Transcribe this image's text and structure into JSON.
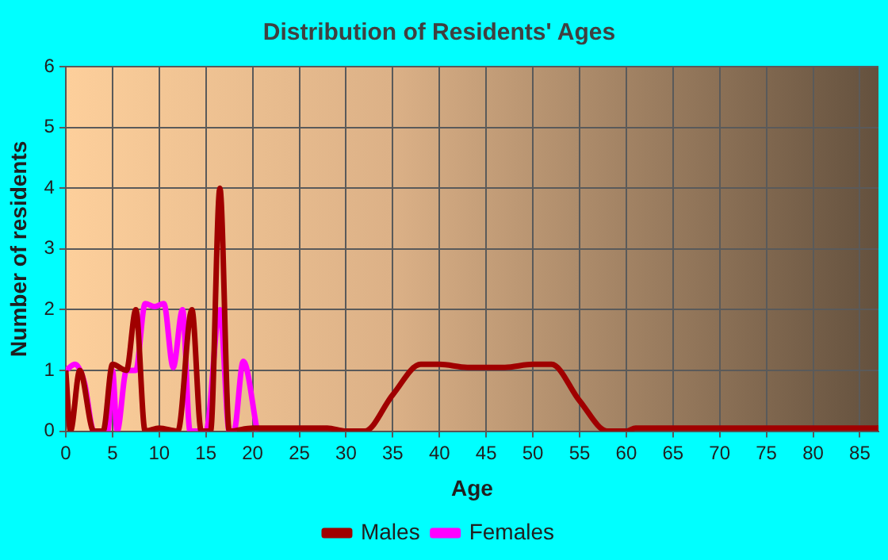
{
  "chart_data": {
    "type": "line",
    "title": "Distribution of Residents' Ages",
    "xlabel": "Age",
    "ylabel": "Number of residents",
    "xlim": [
      0,
      87
    ],
    "xticks": [
      0,
      5,
      10,
      15,
      20,
      25,
      30,
      35,
      40,
      45,
      50,
      55,
      60,
      65,
      70,
      75,
      80,
      85
    ],
    "ylim": [
      0,
      6
    ],
    "yticks": [
      0,
      1,
      2,
      3,
      4,
      5,
      6
    ],
    "grid": true,
    "legend": "bottom",
    "marker": "none",
    "line_style": "solid",
    "series": [
      {
        "name": "Males",
        "color": "#a00000",
        "x": [
          0,
          0.5,
          1.5,
          3,
          4,
          5,
          6.5,
          7.5,
          8.5,
          10,
          12,
          13.5,
          14.5,
          15.5,
          16.5,
          17.5,
          20,
          28,
          30,
          32,
          35,
          38,
          40,
          43,
          47,
          50,
          52,
          55,
          58,
          60,
          61,
          87
        ],
        "values": [
          1,
          0,
          1,
          0,
          0,
          1.1,
          1,
          2,
          0,
          0.05,
          0,
          2,
          0,
          0,
          4,
          0,
          0.05,
          0.05,
          0,
          0,
          0.6,
          1.1,
          1.1,
          1.05,
          1.05,
          1.1,
          1.1,
          0.5,
          0,
          0,
          0.05,
          0.05
        ]
      },
      {
        "name": "Females",
        "color": "#ff00ff",
        "x": [
          0,
          1,
          2,
          3,
          4.5,
          5,
          5.5,
          6.5,
          7.5,
          8.5,
          9.5,
          10.5,
          11.5,
          12.5,
          13.3,
          15,
          16.5,
          17.5,
          18,
          19,
          20.5
        ],
        "values": [
          1,
          1.1,
          0.8,
          0,
          0,
          1,
          0,
          1,
          1,
          2.1,
          2.05,
          2.1,
          1.05,
          2,
          0,
          0,
          2,
          0,
          0,
          1.15,
          0
        ]
      }
    ]
  }
}
